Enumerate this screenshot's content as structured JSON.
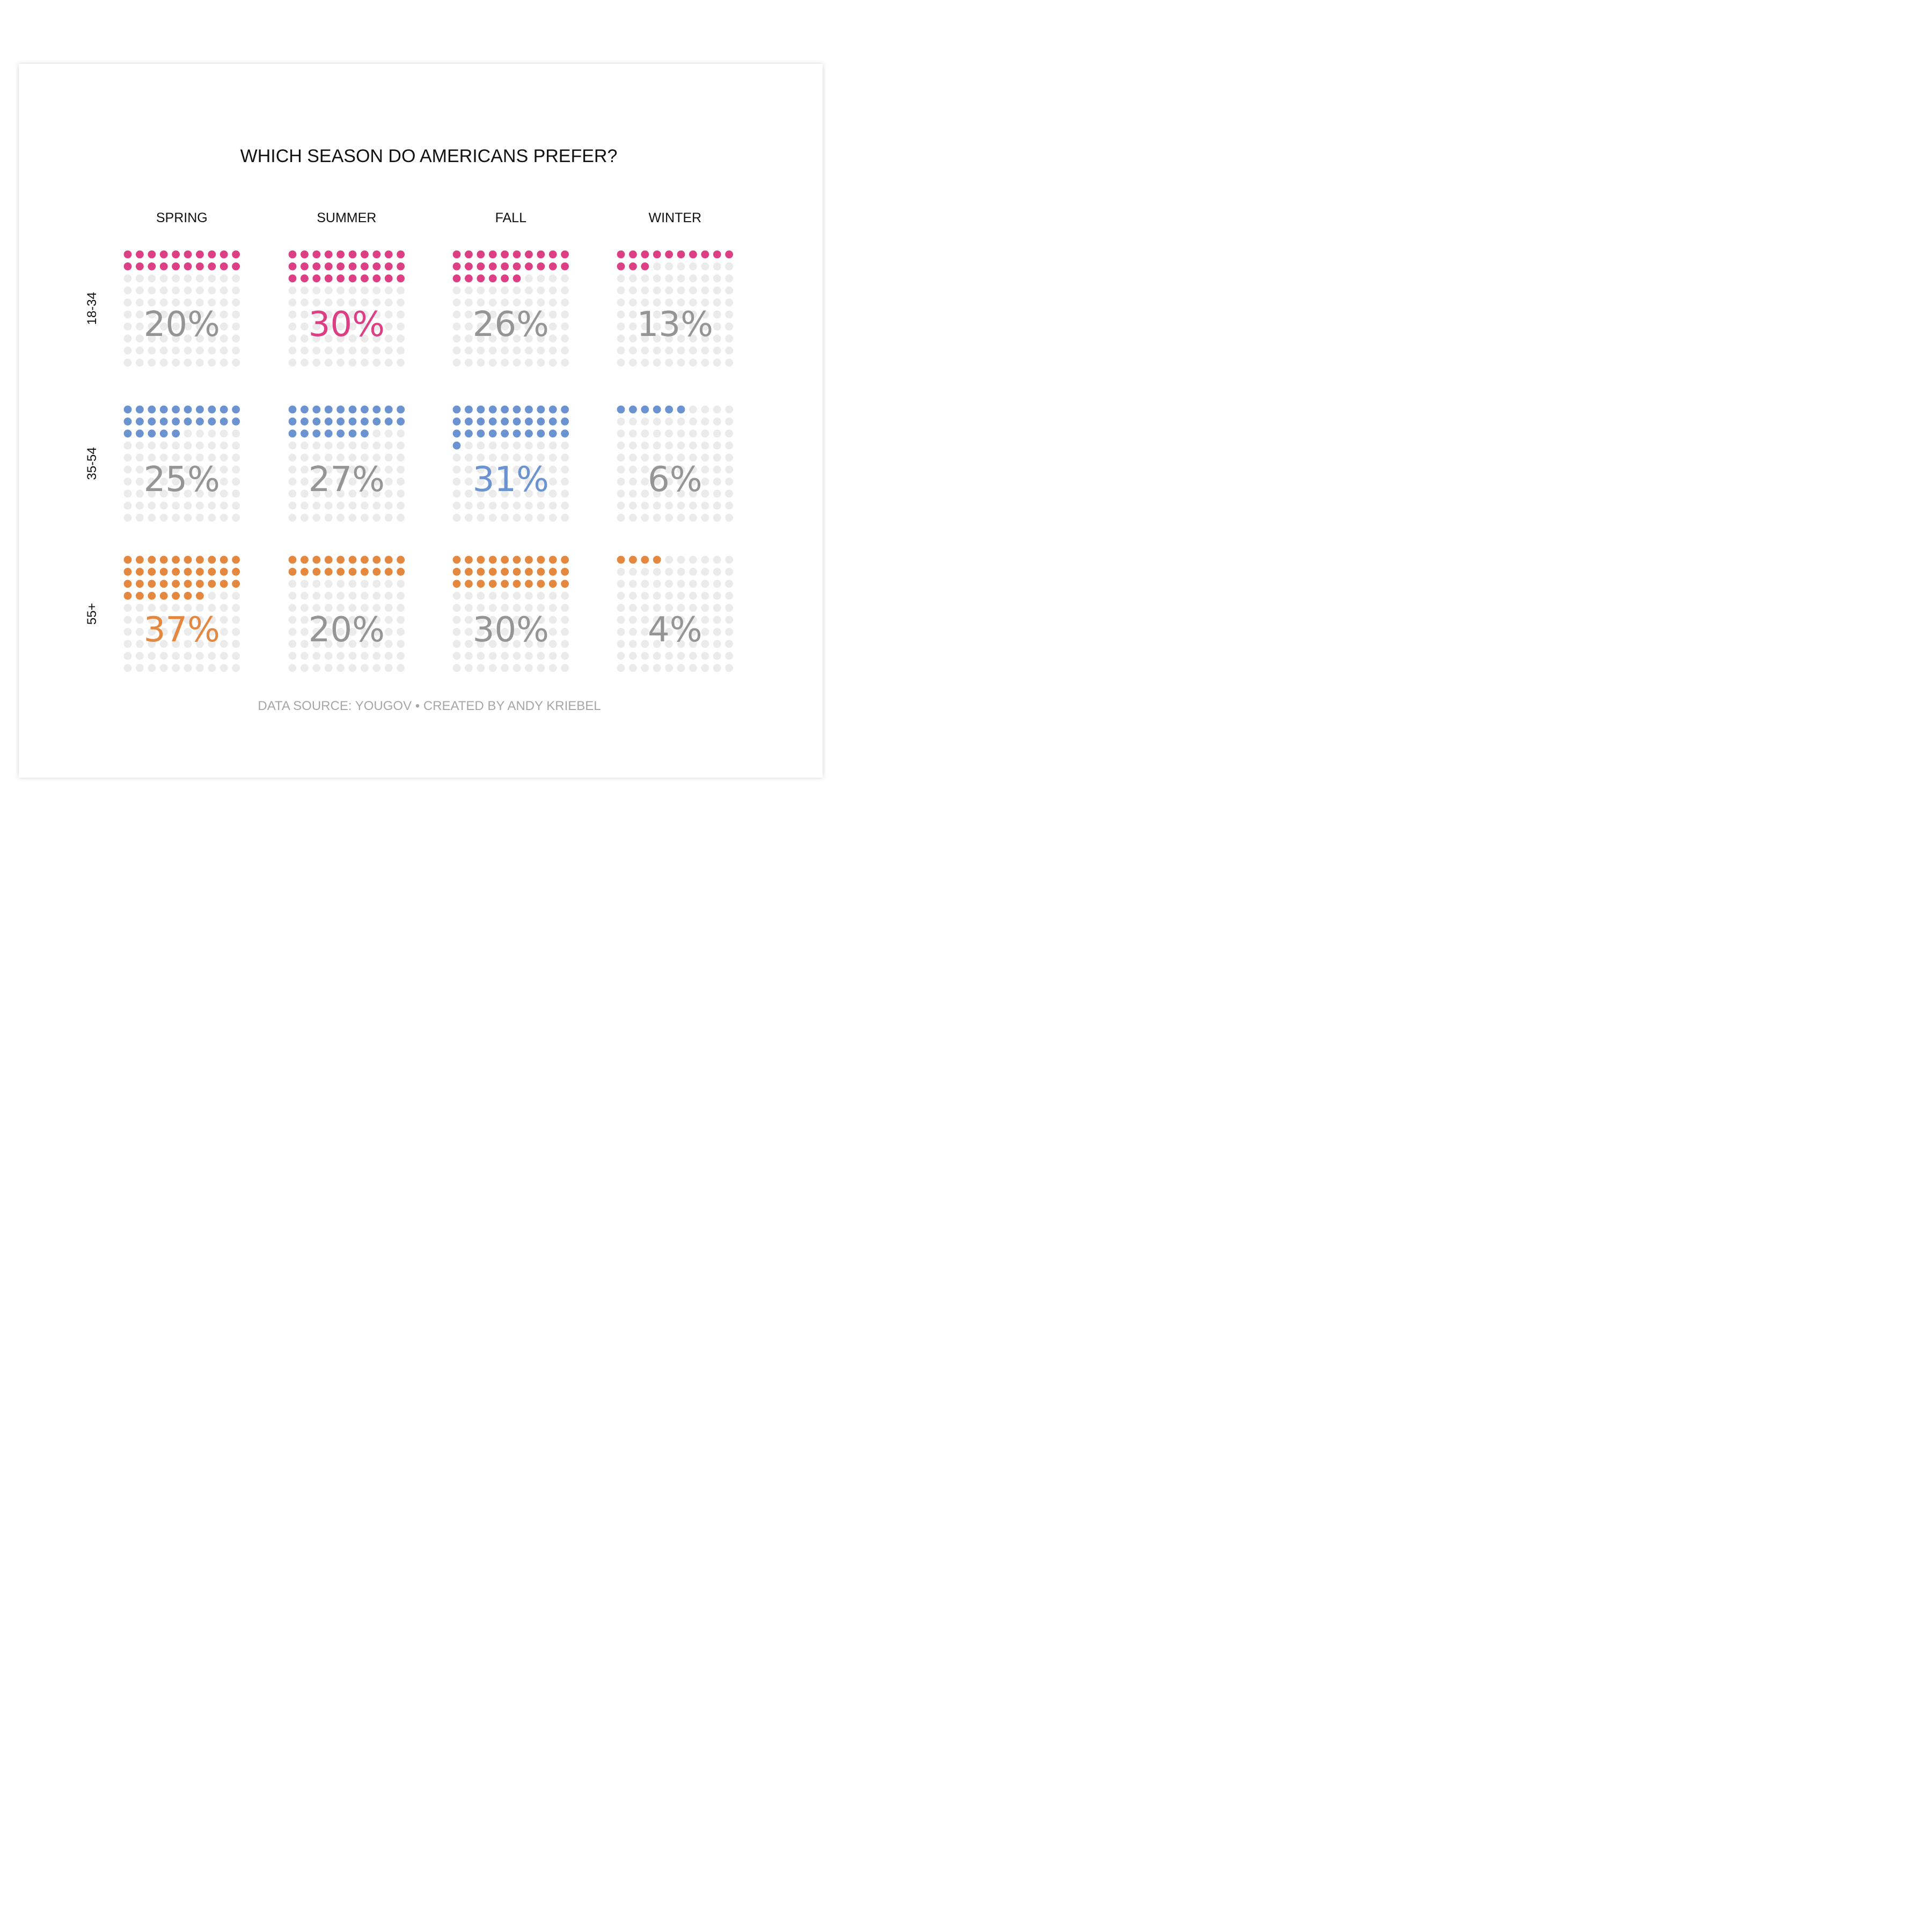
{
  "chart_data": {
    "type": "waffle",
    "title": "WHICH SEASON DO AMERICANS PREFER?",
    "columns": [
      "SPRING",
      "SUMMER",
      "FALL",
      "WINTER"
    ],
    "rows": [
      {
        "label": "18-34",
        "color": "#dd3f84",
        "values": [
          20,
          30,
          26,
          13
        ],
        "highlight_column": 1
      },
      {
        "label": "35-54",
        "color": "#6b93d1",
        "values": [
          25,
          27,
          31,
          6
        ],
        "highlight_column": 2
      },
      {
        "label": "55+",
        "color": "#e4873f",
        "values": [
          37,
          20,
          30,
          4
        ],
        "highlight_column": 0
      }
    ],
    "grid_size": 10,
    "empty_dot_color": "#ebebeb",
    "label_gray_color": "#959595",
    "value_format": "{v}%",
    "source": "DATA SOURCE: YOUGOV • CREATED BY ANDY KRIEBEL"
  }
}
